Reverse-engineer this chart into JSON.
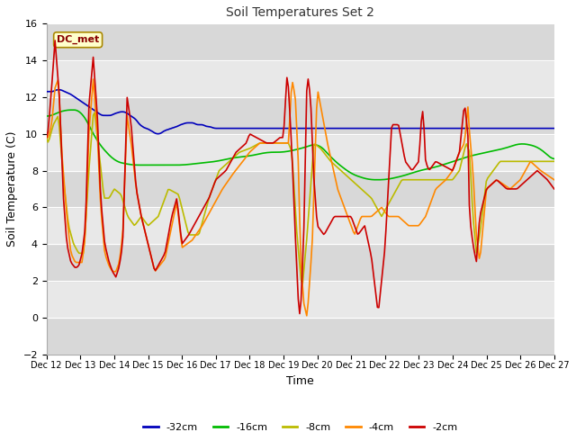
{
  "title": "Soil Temperatures Set 2",
  "xlabel": "Time",
  "ylabel": "Soil Temperature (C)",
  "ylim": [
    -2,
    16
  ],
  "yticks": [
    -2,
    0,
    2,
    4,
    6,
    8,
    10,
    12,
    14,
    16
  ],
  "annotation_text": "DC_met",
  "legend_entries": [
    "-32cm",
    "-16cm",
    "-8cm",
    "-4cm",
    "-2cm"
  ],
  "line_colors": [
    "#0000bb",
    "#00bb00",
    "#bbbb00",
    "#ff8800",
    "#cc0000"
  ],
  "xtick_labels": [
    "Dec 12",
    "Dec 13",
    "Dec 14",
    "Dec 15",
    "Dec 16",
    "Dec 17",
    "Dec 18",
    "Dec 19",
    "Dec 20",
    "Dec 21",
    "Dec 22",
    "Dec 23",
    "Dec 24",
    "Dec 25",
    "Dec 26",
    "Dec 27"
  ],
  "series_32": [
    12.3,
    12.3,
    12.3,
    12.3,
    12.3,
    12.3,
    12.35,
    12.4,
    12.4,
    12.4,
    12.4,
    12.4,
    12.35,
    12.3,
    12.3,
    12.25,
    12.2,
    12.2,
    12.15,
    12.1,
    12.05,
    12.0,
    11.95,
    11.9,
    11.85,
    11.8,
    11.75,
    11.7,
    11.65,
    11.6,
    11.55,
    11.5,
    11.45,
    11.4,
    11.35,
    11.3,
    11.25,
    11.2,
    11.15,
    11.1,
    11.05,
    11.0,
    11.0,
    11.0,
    11.0,
    11.0,
    11.0,
    11.0,
    11.0,
    11.05,
    11.1,
    11.1,
    11.15,
    11.15,
    11.2,
    11.2,
    11.2,
    11.2,
    11.2,
    11.15,
    11.1,
    11.05,
    11.0,
    10.95,
    10.9,
    10.85,
    10.8,
    10.7,
    10.6,
    10.5,
    10.45,
    10.4,
    10.35,
    10.3,
    10.3,
    10.3,
    10.2,
    10.2,
    10.15,
    10.1,
    10.05,
    10.0,
    10.0,
    10.0,
    10.0,
    10.05,
    10.1,
    10.15,
    10.2,
    10.2,
    10.25,
    10.25,
    10.3,
    10.3,
    10.35,
    10.35,
    10.4,
    10.4,
    10.45,
    10.5,
    10.5,
    10.55,
    10.55,
    10.6,
    10.6,
    10.6,
    10.6,
    10.6,
    10.6,
    10.6,
    10.55,
    10.5,
    10.5,
    10.5,
    10.5,
    10.5,
    10.5,
    10.45,
    10.4,
    10.4,
    10.4,
    10.4,
    10.35,
    10.35,
    10.3,
    10.3,
    10.3,
    10.3,
    10.3,
    10.3,
    10.3,
    10.3,
    10.3,
    10.3,
    10.3,
    10.3,
    10.3,
    10.3,
    10.3,
    10.3,
    10.3,
    10.3,
    10.3,
    10.3,
    10.3,
    10.3,
    10.3,
    10.3,
    10.3,
    10.3,
    10.3,
    10.3,
    10.3,
    10.3,
    10.3,
    10.3,
    10.3,
    10.3,
    10.3,
    10.3,
    10.3,
    10.3,
    10.3,
    10.3,
    10.3,
    10.3,
    10.3,
    10.3,
    10.3,
    10.3,
    10.3,
    10.3,
    10.3,
    10.3,
    10.3,
    10.3,
    10.3,
    10.3,
    10.3,
    10.3,
    10.3,
    10.3,
    10.3,
    10.3,
    10.3,
    10.3,
    10.3,
    10.3,
    10.3,
    10.3,
    10.3,
    10.3,
    10.3,
    10.3,
    10.3,
    10.3,
    10.3,
    10.3,
    10.3,
    10.3,
    10.3,
    10.3,
    10.3,
    10.3,
    10.3,
    10.3,
    10.3,
    10.3,
    10.3,
    10.3,
    10.3,
    10.3,
    10.3,
    10.3,
    10.3,
    10.3,
    10.3,
    10.3,
    10.3,
    10.3,
    10.3,
    10.3,
    10.3,
    10.3,
    10.3,
    10.3,
    10.3,
    10.3,
    10.3,
    10.3,
    10.3,
    10.3,
    10.3,
    10.3,
    10.3,
    10.3,
    10.3,
    10.3,
    10.3,
    10.3,
    10.3,
    10.3,
    10.3,
    10.3,
    10.3,
    10.3,
    10.3,
    10.3,
    10.3,
    10.3,
    10.3,
    10.3,
    10.3,
    10.3,
    10.3,
    10.3,
    10.3,
    10.3,
    10.3,
    10.3,
    10.3,
    10.3,
    10.3,
    10.3,
    10.3,
    10.3,
    10.3,
    10.3,
    10.3,
    10.3,
    10.3,
    10.3,
    10.3,
    10.3,
    10.3,
    10.3,
    10.3,
    10.3,
    10.3,
    10.3,
    10.3,
    10.3,
    10.3,
    10.3,
    10.3,
    10.3,
    10.3,
    10.3,
    10.3,
    10.3,
    10.3,
    10.3,
    10.3,
    10.3,
    10.3,
    10.3,
    10.3,
    10.3,
    10.3,
    10.3,
    10.3,
    10.3,
    10.3,
    10.3,
    10.3,
    10.3,
    10.3,
    10.3,
    10.3,
    10.3,
    10.3,
    10.3,
    10.3,
    10.3,
    10.3,
    10.3,
    10.3,
    10.3,
    10.3,
    10.3,
    10.3,
    10.3,
    10.3,
    10.3,
    10.3,
    10.3,
    10.3,
    10.3,
    10.3,
    10.3,
    10.3,
    10.3,
    10.3,
    10.3,
    10.3,
    10.3,
    10.3,
    10.3,
    10.3,
    10.3,
    10.3,
    10.3,
    10.3,
    10.3,
    10.3,
    10.3,
    10.3,
    10.3,
    10.3,
    10.3,
    10.3,
    10.3,
    10.3,
    10.3,
    10.3,
    10.3,
    10.3,
    10.3,
    10.3,
    10.3,
    10.3,
    10.3,
    10.3,
    10.3,
    10.3,
    10.3,
    10.3,
    10.3,
    10.3,
    10.3,
    10.3,
    10.3,
    10.3,
    10.3,
    10.3,
    10.3,
    10.3
  ],
  "ctrl_t2": [
    0,
    0.05,
    0.15,
    0.25,
    0.38,
    0.5,
    0.6,
    0.72,
    0.85,
    0.95,
    1.05,
    1.15,
    1.25,
    1.38,
    1.5,
    1.6,
    1.72,
    1.85,
    1.95,
    2.05,
    2.15,
    2.25,
    2.38,
    2.5,
    2.65,
    2.8,
    3.0,
    3.2,
    3.5,
    3.7,
    3.85,
    4.0,
    4.2,
    4.5,
    4.8,
    5.0,
    5.3,
    5.6,
    5.9,
    6.0,
    6.2,
    6.5,
    6.7,
    6.9,
    7.0,
    7.1,
    7.15,
    7.25,
    7.35,
    7.45,
    7.5,
    7.6,
    7.7,
    7.8,
    7.9,
    8.0,
    8.2,
    8.5,
    8.8,
    9.0,
    9.2,
    9.4,
    9.6,
    9.8,
    10.0,
    10.2,
    10.4,
    10.6,
    10.8,
    11.0,
    11.1,
    11.15,
    11.2,
    11.3,
    11.5,
    11.8,
    12.0,
    12.2,
    12.35,
    12.45,
    12.5,
    12.6,
    12.7,
    12.8,
    13.0,
    13.3,
    13.6,
    13.9,
    14.2,
    14.5,
    14.8,
    15.0
  ],
  "ctrl_v2": [
    9.8,
    10.2,
    12.5,
    15.1,
    12.0,
    6.5,
    4.0,
    3.0,
    2.7,
    2.8,
    3.5,
    5.0,
    11.5,
    14.2,
    11.0,
    6.5,
    4.0,
    3.0,
    2.5,
    2.2,
    2.8,
    4.0,
    12.0,
    10.5,
    7.0,
    5.5,
    4.0,
    2.5,
    3.5,
    5.5,
    6.5,
    4.0,
    4.5,
    5.5,
    6.5,
    7.5,
    8.0,
    9.0,
    9.5,
    10.0,
    9.8,
    9.5,
    9.5,
    9.8,
    9.8,
    13.1,
    12.5,
    9.0,
    4.5,
    0.5,
    0.0,
    4.5,
    13.4,
    12.0,
    7.5,
    5.0,
    4.5,
    5.5,
    5.5,
    5.5,
    4.5,
    5.0,
    3.3,
    0.2,
    3.8,
    10.5,
    10.5,
    8.5,
    8.0,
    8.5,
    11.5,
    10.5,
    8.5,
    8.0,
    8.5,
    8.2,
    8.0,
    9.0,
    11.7,
    10.0,
    5.5,
    4.0,
    3.0,
    5.5,
    7.0,
    7.5,
    7.0,
    7.0,
    7.5,
    8.0,
    7.5,
    7.0
  ],
  "ctrl_t4": [
    0,
    0.05,
    0.15,
    0.25,
    0.35,
    0.45,
    0.6,
    0.72,
    0.85,
    0.95,
    1.05,
    1.15,
    1.25,
    1.38,
    1.5,
    1.6,
    1.72,
    1.85,
    1.95,
    2.05,
    2.15,
    2.25,
    2.38,
    2.5,
    2.65,
    2.8,
    3.0,
    3.2,
    3.5,
    3.7,
    3.85,
    4.0,
    4.3,
    4.6,
    4.9,
    5.2,
    5.5,
    5.8,
    6.0,
    6.3,
    6.6,
    6.9,
    7.0,
    7.1,
    7.15,
    7.25,
    7.35,
    7.45,
    7.5,
    7.6,
    7.7,
    7.85,
    8.0,
    8.3,
    8.6,
    8.9,
    9.1,
    9.3,
    9.6,
    9.9,
    10.1,
    10.4,
    10.7,
    11.0,
    11.2,
    11.5,
    11.8,
    12.0,
    12.2,
    12.35,
    12.45,
    12.5,
    12.6,
    12.7,
    12.8,
    13.0,
    13.3,
    13.7,
    14.0,
    14.3,
    14.6,
    15.0
  ],
  "ctrl_v4": [
    9.8,
    9.8,
    10.5,
    12.5,
    13.0,
    9.0,
    5.5,
    3.5,
    3.0,
    3.0,
    3.0,
    4.5,
    10.0,
    13.0,
    10.0,
    6.0,
    3.5,
    2.8,
    2.5,
    2.5,
    3.0,
    4.5,
    11.0,
    9.5,
    7.0,
    5.5,
    4.0,
    2.5,
    3.2,
    5.0,
    6.3,
    3.8,
    4.2,
    5.0,
    6.0,
    7.0,
    7.8,
    8.5,
    9.0,
    9.5,
    9.5,
    9.5,
    9.5,
    9.5,
    9.5,
    13.0,
    12.0,
    8.0,
    3.5,
    0.8,
    0.0,
    4.0,
    12.5,
    9.5,
    7.0,
    5.5,
    4.5,
    5.5,
    5.5,
    6.0,
    5.5,
    5.5,
    5.0,
    5.0,
    5.5,
    7.0,
    7.5,
    8.0,
    9.0,
    9.5,
    11.5,
    10.0,
    8.0,
    4.5,
    3.0,
    7.0,
    7.5,
    7.0,
    7.5,
    8.5,
    8.0,
    7.5
  ],
  "ctrl_t8": [
    0,
    0.05,
    0.2,
    0.35,
    0.5,
    0.65,
    0.8,
    0.95,
    1.1,
    1.25,
    1.4,
    1.55,
    1.7,
    1.85,
    2.0,
    2.2,
    2.4,
    2.6,
    2.8,
    3.0,
    3.3,
    3.6,
    3.9,
    4.2,
    4.5,
    4.8,
    5.1,
    5.4,
    5.7,
    6.0,
    6.3,
    6.6,
    6.9,
    7.0,
    7.15,
    7.25,
    7.4,
    7.55,
    7.7,
    7.9,
    8.1,
    8.4,
    8.7,
    9.0,
    9.3,
    9.6,
    9.9,
    10.2,
    10.5,
    10.8,
    11.0,
    11.3,
    11.6,
    11.9,
    12.0,
    12.2,
    12.4,
    12.5,
    12.6,
    12.7,
    12.8,
    13.0,
    13.4,
    13.8,
    14.2,
    14.6,
    15.0
  ],
  "ctrl_v8": [
    9.8,
    9.5,
    10.5,
    11.0,
    7.5,
    5.0,
    4.0,
    3.5,
    3.5,
    8.0,
    11.5,
    9.0,
    6.5,
    6.5,
    7.0,
    6.7,
    5.5,
    5.0,
    5.5,
    5.0,
    5.5,
    7.0,
    6.7,
    4.5,
    4.5,
    6.5,
    8.0,
    8.5,
    9.0,
    9.2,
    9.5,
    9.5,
    9.5,
    9.5,
    9.5,
    9.0,
    4.5,
    1.5,
    4.5,
    9.5,
    9.2,
    8.5,
    8.0,
    7.5,
    7.0,
    6.5,
    5.5,
    6.5,
    7.5,
    7.5,
    7.5,
    7.5,
    7.5,
    7.5,
    7.5,
    8.0,
    9.5,
    9.0,
    5.5,
    3.5,
    4.5,
    7.5,
    8.5,
    8.5,
    8.5,
    8.5,
    8.5
  ],
  "ctrl_t16": [
    0,
    0.5,
    1.0,
    1.5,
    2.0,
    2.5,
    3.0,
    3.5,
    4.0,
    4.5,
    5.0,
    5.5,
    6.0,
    6.5,
    7.0,
    7.5,
    8.0,
    8.5,
    9.0,
    9.5,
    10.0,
    10.5,
    11.0,
    11.5,
    12.0,
    12.5,
    13.0,
    13.5,
    14.0,
    14.5,
    15.0
  ],
  "ctrl_v16": [
    10.9,
    11.3,
    11.3,
    9.5,
    8.5,
    8.3,
    8.3,
    8.3,
    8.3,
    8.4,
    8.5,
    8.7,
    8.8,
    9.0,
    9.0,
    9.2,
    9.5,
    8.5,
    7.8,
    7.5,
    7.5,
    7.7,
    8.0,
    8.2,
    8.5,
    8.8,
    9.0,
    9.2,
    9.5,
    9.3,
    8.5
  ]
}
